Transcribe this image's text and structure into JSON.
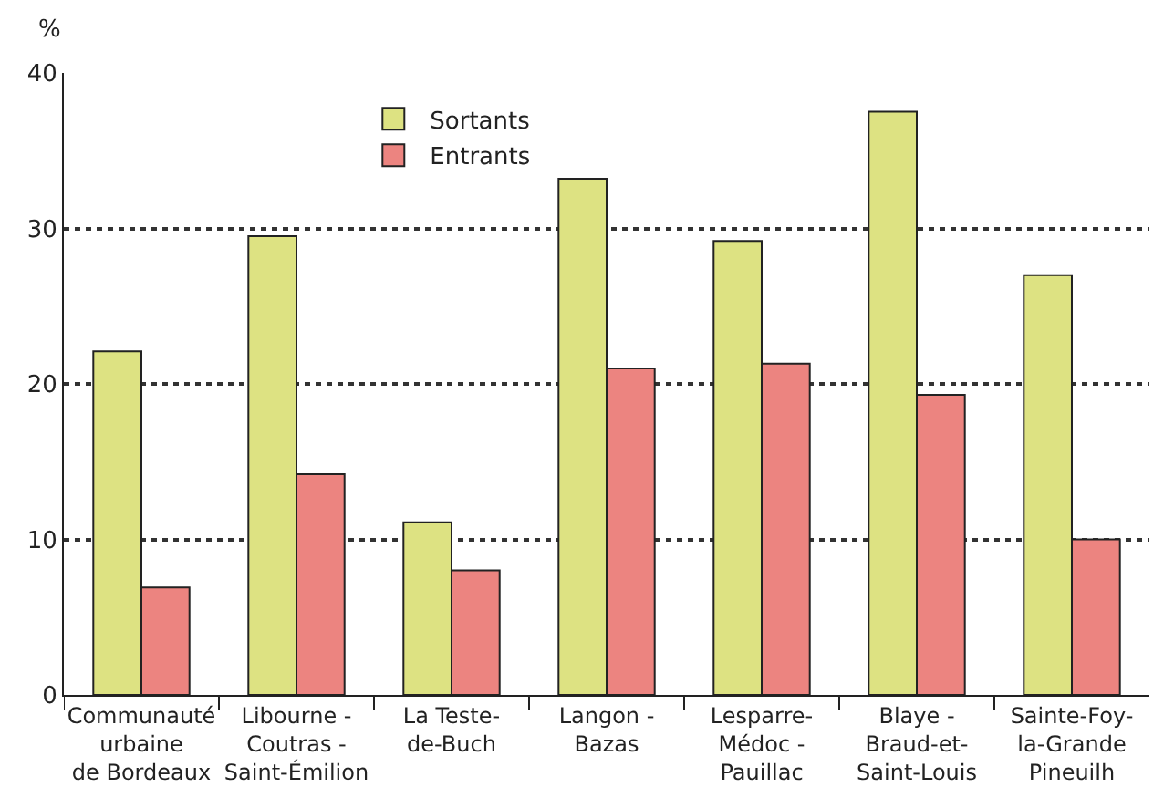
{
  "chart_data": {
    "type": "bar",
    "ylabel": "%",
    "categories": [
      "Communauté\nurbaine\nde Bordeaux",
      "Libourne -\nCoutras -\nSaint-Émilion",
      "La Teste-\nde-Buch",
      "Langon -\nBazas",
      "Lesparre-\nMédoc -\nPauillac",
      "Blaye -\nBraud-et-\nSaint-Louis",
      "Sainte-Foy-\nla-Grande\nPineuilh"
    ],
    "series": [
      {
        "name": "Sortants",
        "color": "#dde282",
        "values": [
          22.1,
          29.5,
          11.1,
          33.2,
          29.2,
          37.5,
          27.0
        ]
      },
      {
        "name": "Entrants",
        "color": "#ec8480",
        "values": [
          6.9,
          14.2,
          8.0,
          21.0,
          21.3,
          19.3,
          10.0
        ]
      }
    ],
    "ylim": [
      0,
      40
    ],
    "yticks": [
      0,
      10,
      20,
      30,
      40
    ],
    "grid": "y",
    "legend": "top"
  }
}
